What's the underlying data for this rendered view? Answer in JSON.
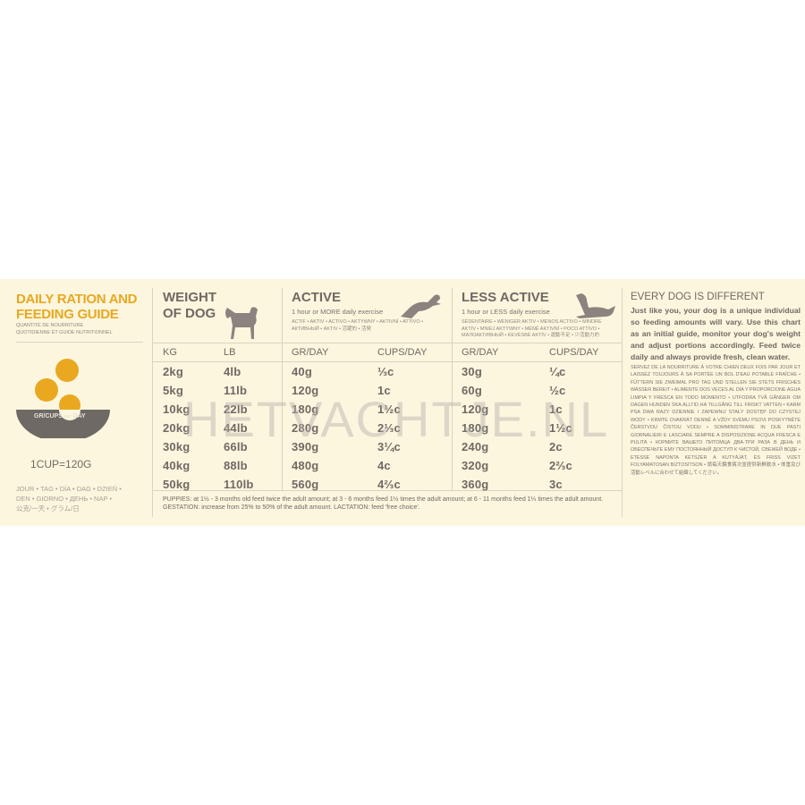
{
  "colors": {
    "accent": "#e9a820",
    "bowl": "#6f6965",
    "background": "#fcf6de",
    "text": "#6f6965"
  },
  "left": {
    "title_line1": "DAILY RATION AND",
    "title_line2": "FEEDING GUIDE",
    "subtitle_line1": "QUANTITÉ DE NOURRITURE",
    "subtitle_line2": "QUOTIDIENNE ET GUIDE NUTRITIONNEL",
    "bowl_label": "GR/CUPS",
    "bowl_label_per": "per",
    "bowl_label_day": "DAY",
    "cup_conversion": "1CUP=120G",
    "day_translations_line1": "JOUR • TAG • DÍA • DAG • DZIEŃ •",
    "day_translations_line2": "DEN • GIORNO • ДЕНЬ • NAP •",
    "day_translations_line3": "公克/一天 • グラム/日"
  },
  "weight": {
    "title_line1": "WEIGHT",
    "title_line2": "OF DOG",
    "icon": "standing-dog-icon",
    "col_kg": "KG",
    "col_lb": "LB",
    "kg": [
      "2kg",
      "5kg",
      "10kg",
      "20kg",
      "30kg",
      "40kg",
      "50kg"
    ],
    "lb": [
      "4lb",
      "11lb",
      "22lb",
      "44lb",
      "66lb",
      "88lb",
      "110lb"
    ]
  },
  "active": {
    "title": "ACTIVE",
    "subtitle": "1 hour or MORE daily exercise",
    "icon": "running-dog-icon",
    "translations": "ACTIF • AKTIV • ACTIVO • AKTYWNY • AKTIVNÍ • ATTIVO • АКТИВНЫЙ • AKTIV • 活躍的 • 活発",
    "col_gr": "GR/DAY",
    "col_cups": "CUPS/DAY",
    "gr": [
      "40g",
      "120g",
      "180g",
      "280g",
      "390g",
      "480g",
      "560g"
    ],
    "cups": [
      "⅓c",
      "1c",
      "1½c",
      "2⅓c",
      "3¼c",
      "4c",
      "4⅔c"
    ]
  },
  "less_active": {
    "title": "LESS ACTIVE",
    "subtitle": "1 hour or LESS daily exercise",
    "icon": "lying-dog-icon",
    "translations": "SÉDENTAIRE • WENIGER AKTIV • MENOS ACTIVO • MINDRE AKTIV • MNIEJ AKTYWNY • MÉNĚ AKTIVNÍ • POCO ATTIVO • МАЛОАКТИВНЫЙ • KEVÉSBÉ AKTÍV • 運動不足 • 少活動力的",
    "col_gr": "GR/DAY",
    "col_cups": "CUPS/DAY",
    "gr": [
      "30g",
      "60g",
      "120g",
      "180g",
      "240g",
      "320g",
      "360g"
    ],
    "cups": [
      "¼c",
      "½c",
      "1c",
      "1½c",
      "2c",
      "2⅔c",
      "3c"
    ]
  },
  "footnote": "PUPPIES: at 1½ - 3 months old feed twice the adult amount; at 3 - 6 months feed 1½ times the adult amount; at 6 - 11 months feed 1¼ times the adult amount. GESTATION: increase from 25% to 50% of the adult amount. LACTATION: feed 'free choice'.",
  "right": {
    "title": "EVERY DOG IS DIFFERENT",
    "body": "Just like you, your dog is a unique individual so feeding amounts will vary. Use this chart as an initial guide, monitor your dog's weight and adjust portions accordingly. Feed twice daily and always provide fresh, clean water.",
    "translations": "Servez de la nourriture à votre chien deux fois par jour et laissez toujours à sa portée un bol d'eau potable fraîche • Füttern Sie zweimal pro Tag und stellen Sie stets frisches Wasser bereit • Alimente dos veces al día y proporcione agua limpia y fresca en todo momento • Utfodra två gånger om dagen hunden ska alltid ha tillgång till friskt vatten • Karm psa dwa razy dziennie i zapewnij stały dostęp do czystej wody • Krmte dvakrát denně a vždy svému psovi poskytněte čerstvou čistou vodu • Somministrare in due pasti giornalieri e lasciare sempre a disposizione acqua fresca e pulita • Кормите Вашего питомца два-три раза в день и обеспечьте ему постоянный доступ к чистой, свежей воде • Etesse naponta kétszer a kutyáját, és friss vizet folyamatosan biztosítson • 請每天餵食兩次並提供新鮮飲水 • 体重及び活動レベルに合わせて給餌してください。"
  },
  "watermark": "HETVACHTJE.NL"
}
